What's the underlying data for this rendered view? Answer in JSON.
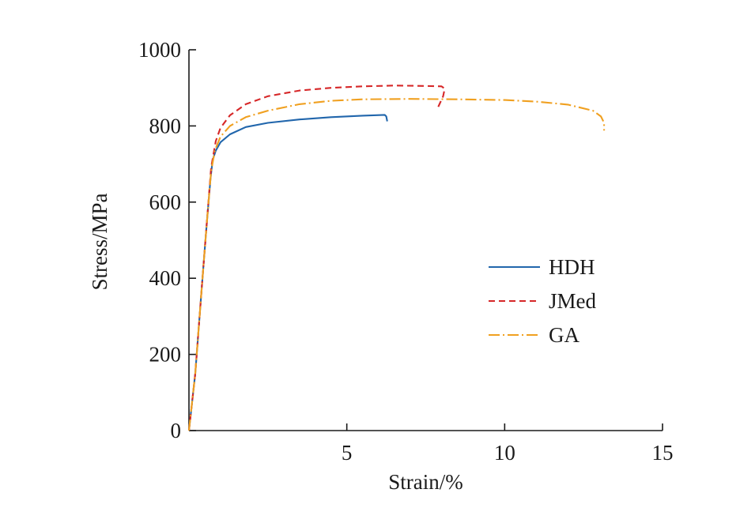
{
  "chart_data": {
    "type": "line",
    "title": "",
    "xlabel": "Strain/%",
    "ylabel": "Stress/MPa",
    "xlim": [
      0,
      15
    ],
    "ylim": [
      0,
      1000
    ],
    "xticks": [
      5,
      10,
      15
    ],
    "xtick_labels": [
      "5",
      "10",
      "15"
    ],
    "yticks": [
      0,
      200,
      400,
      600,
      800,
      1000
    ],
    "ytick_labels": [
      "0",
      "200",
      "400",
      "600",
      "800",
      "1000"
    ],
    "grid": false,
    "legend_position": "right",
    "series": [
      {
        "name": "HDH",
        "color": "#2166ac",
        "dash": "solid",
        "points": [
          [
            0,
            0
          ],
          [
            0.2,
            150
          ],
          [
            0.4,
            370
          ],
          [
            0.55,
            530
          ],
          [
            0.68,
            660
          ],
          [
            0.75,
            710
          ],
          [
            0.85,
            735
          ],
          [
            1.0,
            757
          ],
          [
            1.3,
            778
          ],
          [
            1.8,
            797
          ],
          [
            2.5,
            808
          ],
          [
            3.5,
            817
          ],
          [
            4.5,
            823
          ],
          [
            5.5,
            827
          ],
          [
            6.2,
            829
          ],
          [
            6.25,
            825
          ],
          [
            6.28,
            812
          ]
        ]
      },
      {
        "name": "JMed",
        "color": "#d62728",
        "dash": "dashed",
        "points": [
          [
            0,
            0
          ],
          [
            0.2,
            150
          ],
          [
            0.4,
            370
          ],
          [
            0.55,
            530
          ],
          [
            0.7,
            690
          ],
          [
            0.85,
            760
          ],
          [
            1.0,
            795
          ],
          [
            1.3,
            828
          ],
          [
            1.8,
            857
          ],
          [
            2.5,
            878
          ],
          [
            3.5,
            893
          ],
          [
            4.5,
            900
          ],
          [
            5.5,
            904
          ],
          [
            6.5,
            906
          ],
          [
            7.5,
            905
          ],
          [
            8.0,
            904
          ],
          [
            8.1,
            898
          ],
          [
            8.05,
            878
          ],
          [
            7.95,
            860
          ],
          [
            7.85,
            842
          ]
        ]
      },
      {
        "name": "GA",
        "color": "#f0a020",
        "dash": "dashdot",
        "points": [
          [
            0,
            0
          ],
          [
            0.2,
            150
          ],
          [
            0.4,
            370
          ],
          [
            0.55,
            530
          ],
          [
            0.7,
            680
          ],
          [
            0.82,
            735
          ],
          [
            1.0,
            772
          ],
          [
            1.3,
            800
          ],
          [
            1.8,
            823
          ],
          [
            2.5,
            840
          ],
          [
            3.5,
            857
          ],
          [
            4.5,
            866
          ],
          [
            5.5,
            870
          ],
          [
            7.0,
            871
          ],
          [
            8.5,
            870
          ],
          [
            10.0,
            868
          ],
          [
            11.0,
            864
          ],
          [
            12.0,
            856
          ],
          [
            12.8,
            840
          ],
          [
            13.05,
            825
          ],
          [
            13.15,
            808
          ],
          [
            13.15,
            788
          ]
        ]
      }
    ]
  }
}
